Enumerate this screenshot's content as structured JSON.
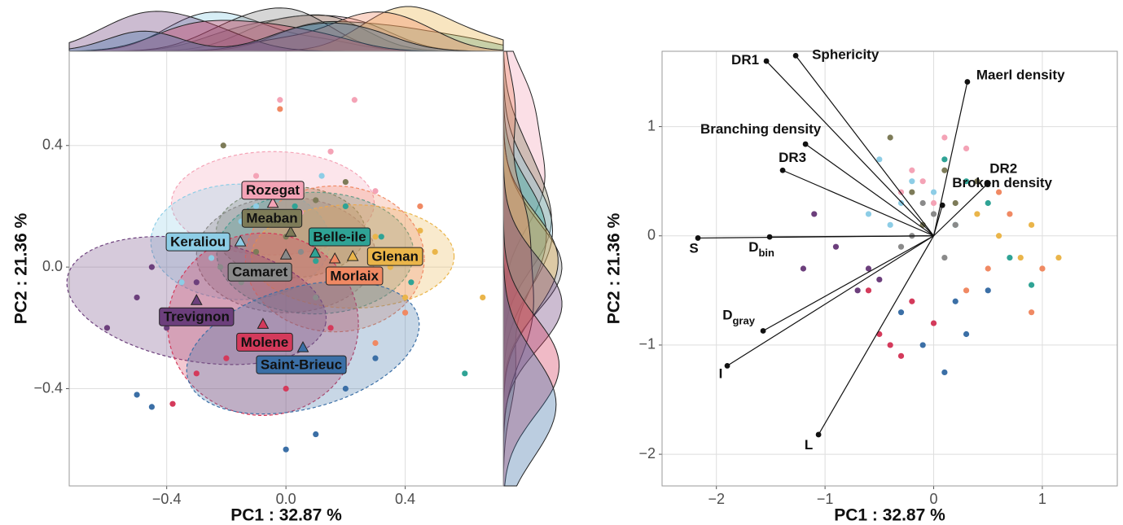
{
  "chart_data": [
    {
      "type": "scatter",
      "xlabel": "PC1 :  32.87 %",
      "ylabel": "PC2 :  21.36 %",
      "xlim": [
        -0.727,
        0.729
      ],
      "ylim": [
        -0.72,
        0.71
      ],
      "xticks": [
        {
          "value": -0.4,
          "label": "−0.4"
        },
        {
          "value": 0,
          "label": "0.0"
        },
        0.4
      ],
      "yticks": [
        {
          "value": -0.4,
          "label": "−0.4"
        },
        {
          "value": 0,
          "label": "0.0"
        },
        0.4
      ],
      "grid": true,
      "series": [
        {
          "name": "Rozegat",
          "color": "#f4a3b6",
          "centroid": [
            -0.044,
            0.21
          ],
          "ellipse": {
            "rx": 0.34,
            "ry": 0.17,
            "angle": 0
          },
          "x": [
            -0.02,
            0.23,
            0.15,
            -0.1,
            0.05,
            0.3
          ],
          "values": [
            0.55,
            0.55,
            0.38,
            0.3,
            0.18,
            0.25
          ]
        },
        {
          "name": "Meaban",
          "color": "#7d7b58",
          "centroid": [
            0.016,
            0.115
          ],
          "ellipse": {
            "rx": 0.25,
            "ry": 0.15,
            "angle": 0
          },
          "x": [
            -0.21,
            0.0,
            0.1,
            0.17,
            -0.1,
            0.2
          ],
          "values": [
            0.4,
            0.1,
            0.22,
            0.12,
            0.05,
            0.28
          ]
        },
        {
          "name": "Keraliou",
          "color": "#8dcde6",
          "centroid": [
            -0.153,
            0.083
          ],
          "ellipse": {
            "rx": 0.3,
            "ry": 0.19,
            "angle": 0
          },
          "x": [
            -0.25,
            -0.3,
            -0.15,
            -0.35,
            -0.1,
            0.12
          ],
          "values": [
            0.03,
            0.1,
            0.15,
            -0.05,
            0.2,
            0.3
          ]
        },
        {
          "name": "Belle-ile",
          "color": "#2fa395",
          "centroid": [
            0.098,
            0.046
          ],
          "ellipse": {
            "rx": 0.33,
            "ry": 0.2,
            "angle": 0
          },
          "x": [
            0.32,
            0.1,
            0.2,
            0.42,
            0.6,
            0.03
          ],
          "values": [
            0.1,
            0.02,
            0.2,
            -0.05,
            -0.35,
            0.2
          ]
        },
        {
          "name": "Camaret",
          "color": "#8a8a8a",
          "centroid": [
            0.0,
            0.04
          ],
          "ellipse": {
            "rx": 0.3,
            "ry": 0.19,
            "angle": 0
          },
          "x": [
            -0.05,
            0.05,
            -0.15,
            0.1,
            0.0,
            -0.22
          ],
          "values": [
            0.0,
            0.05,
            -0.05,
            -0.1,
            0.15,
            0.0
          ]
        },
        {
          "name": "Glenan",
          "color": "#eab54a",
          "centroid": [
            0.224,
            0.035
          ],
          "ellipse": {
            "rx": 0.34,
            "ry": 0.17,
            "angle": 0
          },
          "x": [
            0.35,
            0.5,
            0.4,
            0.66,
            0.3,
            0.45
          ],
          "values": [
            0.0,
            0.05,
            -0.1,
            -0.1,
            0.1,
            0.12
          ]
        },
        {
          "name": "Morlaix",
          "color": "#f08963",
          "centroid": [
            0.164,
            0.027
          ],
          "ellipse": {
            "rx": 0.3,
            "ry": 0.24,
            "angle": 0
          },
          "x": [
            0.25,
            0.4,
            0.3,
            0.45,
            0.2,
            -0.02
          ],
          "values": [
            -0.05,
            -0.15,
            -0.25,
            0.2,
            0.1,
            0.52
          ]
        },
        {
          "name": "Trevignon",
          "color": "#6c3f7c",
          "centroid": [
            -0.3,
            -0.11
          ],
          "ellipse": {
            "rx": 0.44,
            "ry": 0.2,
            "angle": -10
          },
          "x": [
            -0.6,
            -0.5,
            -0.4,
            -0.3,
            -0.45,
            -0.2
          ],
          "values": [
            -0.2,
            -0.1,
            -0.2,
            -0.05,
            0.0,
            -0.15
          ]
        },
        {
          "name": "Molene",
          "color": "#d43a5b",
          "centroid": [
            -0.077,
            -0.188
          ],
          "ellipse": {
            "rx": 0.32,
            "ry": 0.3,
            "angle": 0
          },
          "x": [
            -0.38,
            -0.2,
            -0.1,
            0.0,
            0.15,
            -0.3
          ],
          "values": [
            -0.45,
            -0.3,
            -0.25,
            -0.4,
            -0.2,
            -0.35
          ]
        },
        {
          "name": "Saint-Brieuc",
          "color": "#3b6fa6",
          "centroid": [
            0.057,
            -0.265
          ],
          "ellipse": {
            "rx": 0.4,
            "ry": 0.2,
            "angle": 15
          },
          "x": [
            -0.5,
            -0.45,
            0.0,
            0.1,
            0.2,
            0.3
          ],
          "values": [
            -0.42,
            -0.46,
            -0.6,
            -0.55,
            -0.4,
            -0.3
          ]
        }
      ]
    },
    {
      "type": "biplot",
      "xlabel": "PC1 :  32.87 %",
      "ylabel": "PC2 :  21.36 %",
      "xlim": [
        -2.5,
        1.69
      ],
      "ylim": [
        -2.29,
        1.69
      ],
      "xticks": [
        {
          "value": -2,
          "label": "−2"
        },
        {
          "value": -1,
          "label": "−1"
        },
        0,
        1
      ],
      "yticks": [
        {
          "value": -2,
          "label": "−2"
        },
        {
          "value": -1,
          "label": "−1"
        },
        0,
        1
      ],
      "grid": true,
      "series": [
        {
          "color": "#f4a3b6",
          "x": [
            -0.2,
            0.1,
            -0.1,
            0.3,
            0.0,
            -0.3
          ],
          "values": [
            0.6,
            0.9,
            0.5,
            0.8,
            0.3,
            0.4
          ]
        },
        {
          "color": "#7d7b58",
          "x": [
            -0.4,
            -0.2,
            0.2,
            0.1,
            -0.1,
            0.4
          ],
          "values": [
            0.9,
            0.4,
            0.3,
            0.6,
            0.1,
            0.5
          ]
        },
        {
          "color": "#8dcde6",
          "x": [
            -0.5,
            -0.3,
            -0.6,
            -0.2,
            0.0,
            -0.4
          ],
          "values": [
            0.7,
            0.3,
            0.2,
            0.5,
            0.4,
            0.1
          ]
        },
        {
          "color": "#2fa395",
          "x": [
            0.3,
            0.5,
            0.2,
            0.7,
            0.9,
            0.1
          ],
          "values": [
            0.5,
            0.3,
            0.1,
            -0.2,
            -0.45,
            0.7
          ]
        },
        {
          "color": "#8a8a8a",
          "x": [
            -0.2,
            0.0,
            -0.3,
            0.1,
            0.2,
            -0.1
          ],
          "values": [
            0.0,
            0.2,
            -0.1,
            -0.2,
            0.1,
            0.3
          ]
        },
        {
          "color": "#eab54a",
          "x": [
            0.6,
            0.8,
            1.15,
            0.9,
            0.4,
            1.0
          ],
          "values": [
            0.0,
            -0.2,
            -0.2,
            0.1,
            0.2,
            -0.3
          ]
        },
        {
          "color": "#f08963",
          "x": [
            0.5,
            0.7,
            1.0,
            0.3,
            0.9,
            0.6
          ],
          "values": [
            -0.3,
            0.2,
            -0.3,
            -0.5,
            -0.7,
            0.4
          ]
        },
        {
          "color": "#6c3f7c",
          "x": [
            -1.2,
            -0.9,
            -1.1,
            -0.7,
            -0.5,
            -0.6
          ],
          "values": [
            -0.3,
            -0.1,
            0.2,
            -0.5,
            -0.4,
            -0.3
          ]
        },
        {
          "color": "#d43a5b",
          "x": [
            -0.5,
            -0.3,
            -0.2,
            -0.4,
            0.0,
            -0.6
          ],
          "values": [
            -0.9,
            -1.1,
            -0.6,
            -1.0,
            -0.8,
            -0.5
          ]
        },
        {
          "color": "#3b6fa6",
          "x": [
            0.1,
            0.3,
            -0.3,
            0.2,
            0.5,
            -0.1
          ],
          "values": [
            -1.25,
            -0.9,
            -0.7,
            -0.6,
            -0.5,
            -1.0
          ]
        }
      ],
      "vectors": [
        {
          "name": "DR1",
          "x": -1.54,
          "y": 1.6
        },
        {
          "name": "Sphericity",
          "x": -1.27,
          "y": 1.65
        },
        {
          "name": "Maerl density",
          "x": 0.31,
          "y": 1.41
        },
        {
          "name": "Branching density",
          "x": -1.18,
          "y": 0.84
        },
        {
          "name": "DR3",
          "x": -1.39,
          "y": 0.6
        },
        {
          "name": "DR2",
          "x": 0.5,
          "y": 0.48
        },
        {
          "name": "Broken density",
          "x": 0.08,
          "y": 0.28
        },
        {
          "name": "S",
          "x": -2.17,
          "y": -0.02
        },
        {
          "name": "D",
          "subscript": "bin",
          "x": -1.51,
          "y": -0.01
        },
        {
          "name": "D",
          "subscript": "gray",
          "x": -1.57,
          "y": -0.87
        },
        {
          "name": "I",
          "x": -1.9,
          "y": -1.19
        },
        {
          "name": "L",
          "x": -1.06,
          "y": -1.82
        }
      ]
    }
  ]
}
